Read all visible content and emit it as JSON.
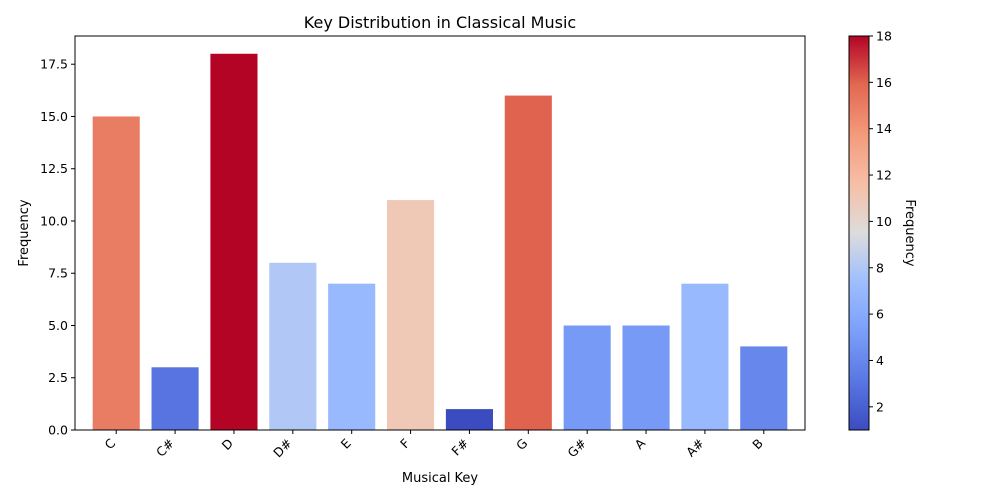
{
  "chart_data": {
    "type": "bar",
    "title": "Key Distribution in Classical Music",
    "xlabel": "Musical Key",
    "ylabel": "Frequency",
    "categories": [
      "C",
      "C#",
      "D",
      "D#",
      "E",
      "F",
      "F#",
      "G",
      "G#",
      "A",
      "A#",
      "B"
    ],
    "values": [
      15,
      3,
      18,
      8,
      7,
      11,
      1,
      16,
      5,
      5,
      7,
      4
    ],
    "ylim": [
      0,
      18.85
    ],
    "yticks": [
      "0.0",
      "2.5",
      "5.0",
      "7.5",
      "10.0",
      "12.5",
      "15.0",
      "17.5"
    ],
    "xtick_rotation_deg": 45,
    "grid": false,
    "colormap": "coolwarm",
    "colorbar": {
      "label": "Frequency",
      "range": [
        1,
        18
      ],
      "ticks": [
        "2",
        "4",
        "6",
        "8",
        "10",
        "12",
        "14",
        "16",
        "18"
      ],
      "placement": "right"
    }
  }
}
